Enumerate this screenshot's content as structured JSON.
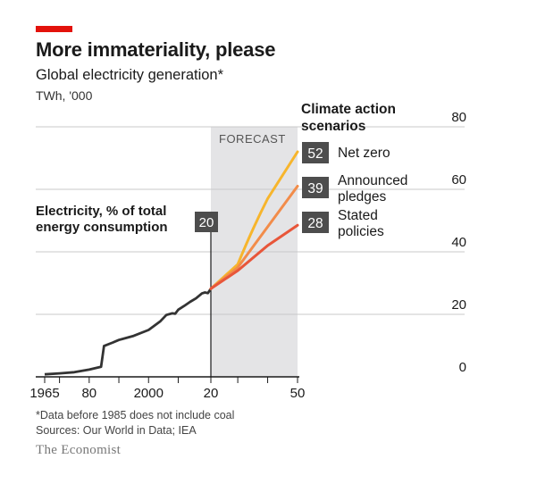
{
  "title": "More immateriality, please",
  "subtitle": "Global electricity generation*",
  "units": "TWh, '000",
  "footnote": "*Data before 1985 does not include coal",
  "sources": "Sources: Our World in Data; IEA",
  "logo": "The Economist",
  "colors": {
    "accent_red": "#e3120b",
    "history": "#333333",
    "net_zero": "#f7b52c",
    "announced_pledges": "#f28c4a",
    "stated_policies": "#e8563a",
    "forecast_shade": "#e4e4e6",
    "label_box": "#4d4d4d"
  },
  "chart_data": {
    "type": "line",
    "x_ticks": [
      "1965",
      "80",
      "2000",
      "20",
      "50"
    ],
    "y_ticks": [
      "0",
      "20",
      "40",
      "60",
      "80"
    ],
    "ylim": [
      0,
      80
    ],
    "xlim": [
      1962,
      2050
    ],
    "grid": true,
    "forecast_label": "FORECAST",
    "forecast_range": [
      2021,
      2050
    ],
    "annotation": {
      "text_line1": "Electricity, % of total",
      "text_line2": "energy consumption",
      "value": "20",
      "x": 2021
    },
    "legend_title_line1": "Climate action",
    "legend_title_line2": "scenarios",
    "history": {
      "x": [
        1965,
        1970,
        1975,
        1980,
        1984,
        1985,
        1988,
        1990,
        1995,
        2000,
        2004,
        2006,
        2008,
        2009,
        2010,
        2012,
        2014,
        2016,
        2018,
        2019,
        2020,
        2021
      ],
      "y": [
        0.8,
        1.1,
        1.5,
        2.3,
        3.2,
        9.9,
        11,
        11.8,
        13.1,
        15,
        17.8,
        19.8,
        20.3,
        20.2,
        21.5,
        22.7,
        24,
        25.1,
        26.7,
        27,
        26.8,
        28.2
      ]
    },
    "series": [
      {
        "name_line1": "Net zero",
        "name_line2": "",
        "end_value": "52",
        "x": [
          2021,
          2030,
          2040,
          2050
        ],
        "y": [
          28.2,
          36,
          57,
          72
        ]
      },
      {
        "name_line1": "Announced",
        "name_line2": "pledges",
        "end_value": "39",
        "x": [
          2021,
          2030,
          2040,
          2050
        ],
        "y": [
          28.2,
          35,
          48,
          61
        ]
      },
      {
        "name_line1": "Stated",
        "name_line2": "policies",
        "end_value": "28",
        "x": [
          2021,
          2030,
          2040,
          2050
        ],
        "y": [
          28.2,
          34,
          42,
          48.5
        ]
      }
    ]
  }
}
